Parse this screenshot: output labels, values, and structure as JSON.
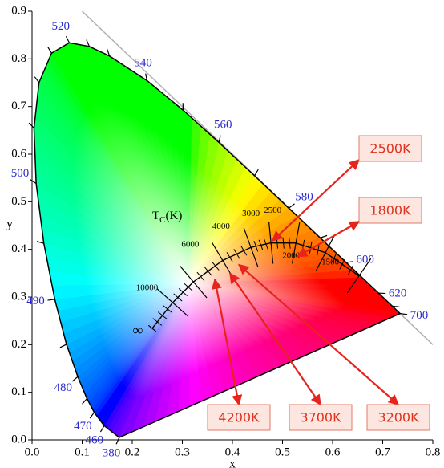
{
  "chart_data": {
    "type": "chromaticity",
    "xlabel": "x",
    "ylabel": "y",
    "xlim": [
      0,
      0.8
    ],
    "ylim": [
      0,
      0.9
    ],
    "xticks": [
      {
        "value": 0,
        "label": "0.0"
      },
      0.1,
      0.2,
      0.3,
      0.4,
      0.5,
      0.6,
      0.7,
      0.8
    ],
    "yticks": [
      {
        "value": 0,
        "label": "0.0"
      },
      0.1,
      0.2,
      0.3,
      0.4,
      0.5,
      0.6,
      0.7,
      0.8,
      0.9
    ],
    "spectral": {
      "x": [
        0.1741,
        0.144,
        0.1241,
        0.1096,
        0.0913,
        0.0687,
        0.0454,
        0.0235,
        0.0082,
        0.0039,
        0.0139,
        0.0389,
        0.0743,
        0.1142,
        0.1547,
        0.2296,
        0.3016,
        0.3731,
        0.4441,
        0.5125,
        0.5752,
        0.627,
        0.6915,
        0.719,
        0.7347
      ],
      "y": [
        0.005,
        0.0297,
        0.0578,
        0.0868,
        0.1327,
        0.2007,
        0.295,
        0.4127,
        0.5384,
        0.6548,
        0.7502,
        0.812,
        0.8338,
        0.8262,
        0.8059,
        0.7543,
        0.6923,
        0.6245,
        0.5547,
        0.4866,
        0.4242,
        0.3725,
        0.3083,
        0.2809,
        0.2653
      ],
      "labels": [
        "380",
        "460",
        "470",
        null,
        "480",
        null,
        "490",
        null,
        "500",
        null,
        null,
        null,
        "520",
        null,
        null,
        "540",
        null,
        "560",
        null,
        "580",
        null,
        "600",
        "620",
        null,
        "700"
      ]
    },
    "planckian": {
      "x": [
        0.2399,
        0.2807,
        0.3221,
        0.3805,
        0.4369,
        0.477,
        0.5267,
        0.5857,
        0.6528
      ],
      "y": [
        0.2342,
        0.2883,
        0.3318,
        0.3768,
        0.4041,
        0.4137,
        0.4133,
        0.3931,
        0.3444
      ],
      "labels": [
        "∞",
        "10000",
        "6000",
        "4000",
        "3000",
        "2500",
        "2000",
        "1500",
        null
      ]
    },
    "planckian_title": [
      "T",
      "C",
      "(K)"
    ],
    "annotations": [
      {
        "text": "2500K",
        "x": 0.48,
        "y": 0.418
      },
      {
        "text": "1800K",
        "x": 0.53,
        "y": 0.385
      },
      {
        "text": "4200K",
        "x": 0.365,
        "y": 0.337
      },
      {
        "text": "3700K",
        "x": 0.395,
        "y": 0.35
      },
      {
        "text": "3200K",
        "x": 0.413,
        "y": 0.368
      }
    ]
  }
}
